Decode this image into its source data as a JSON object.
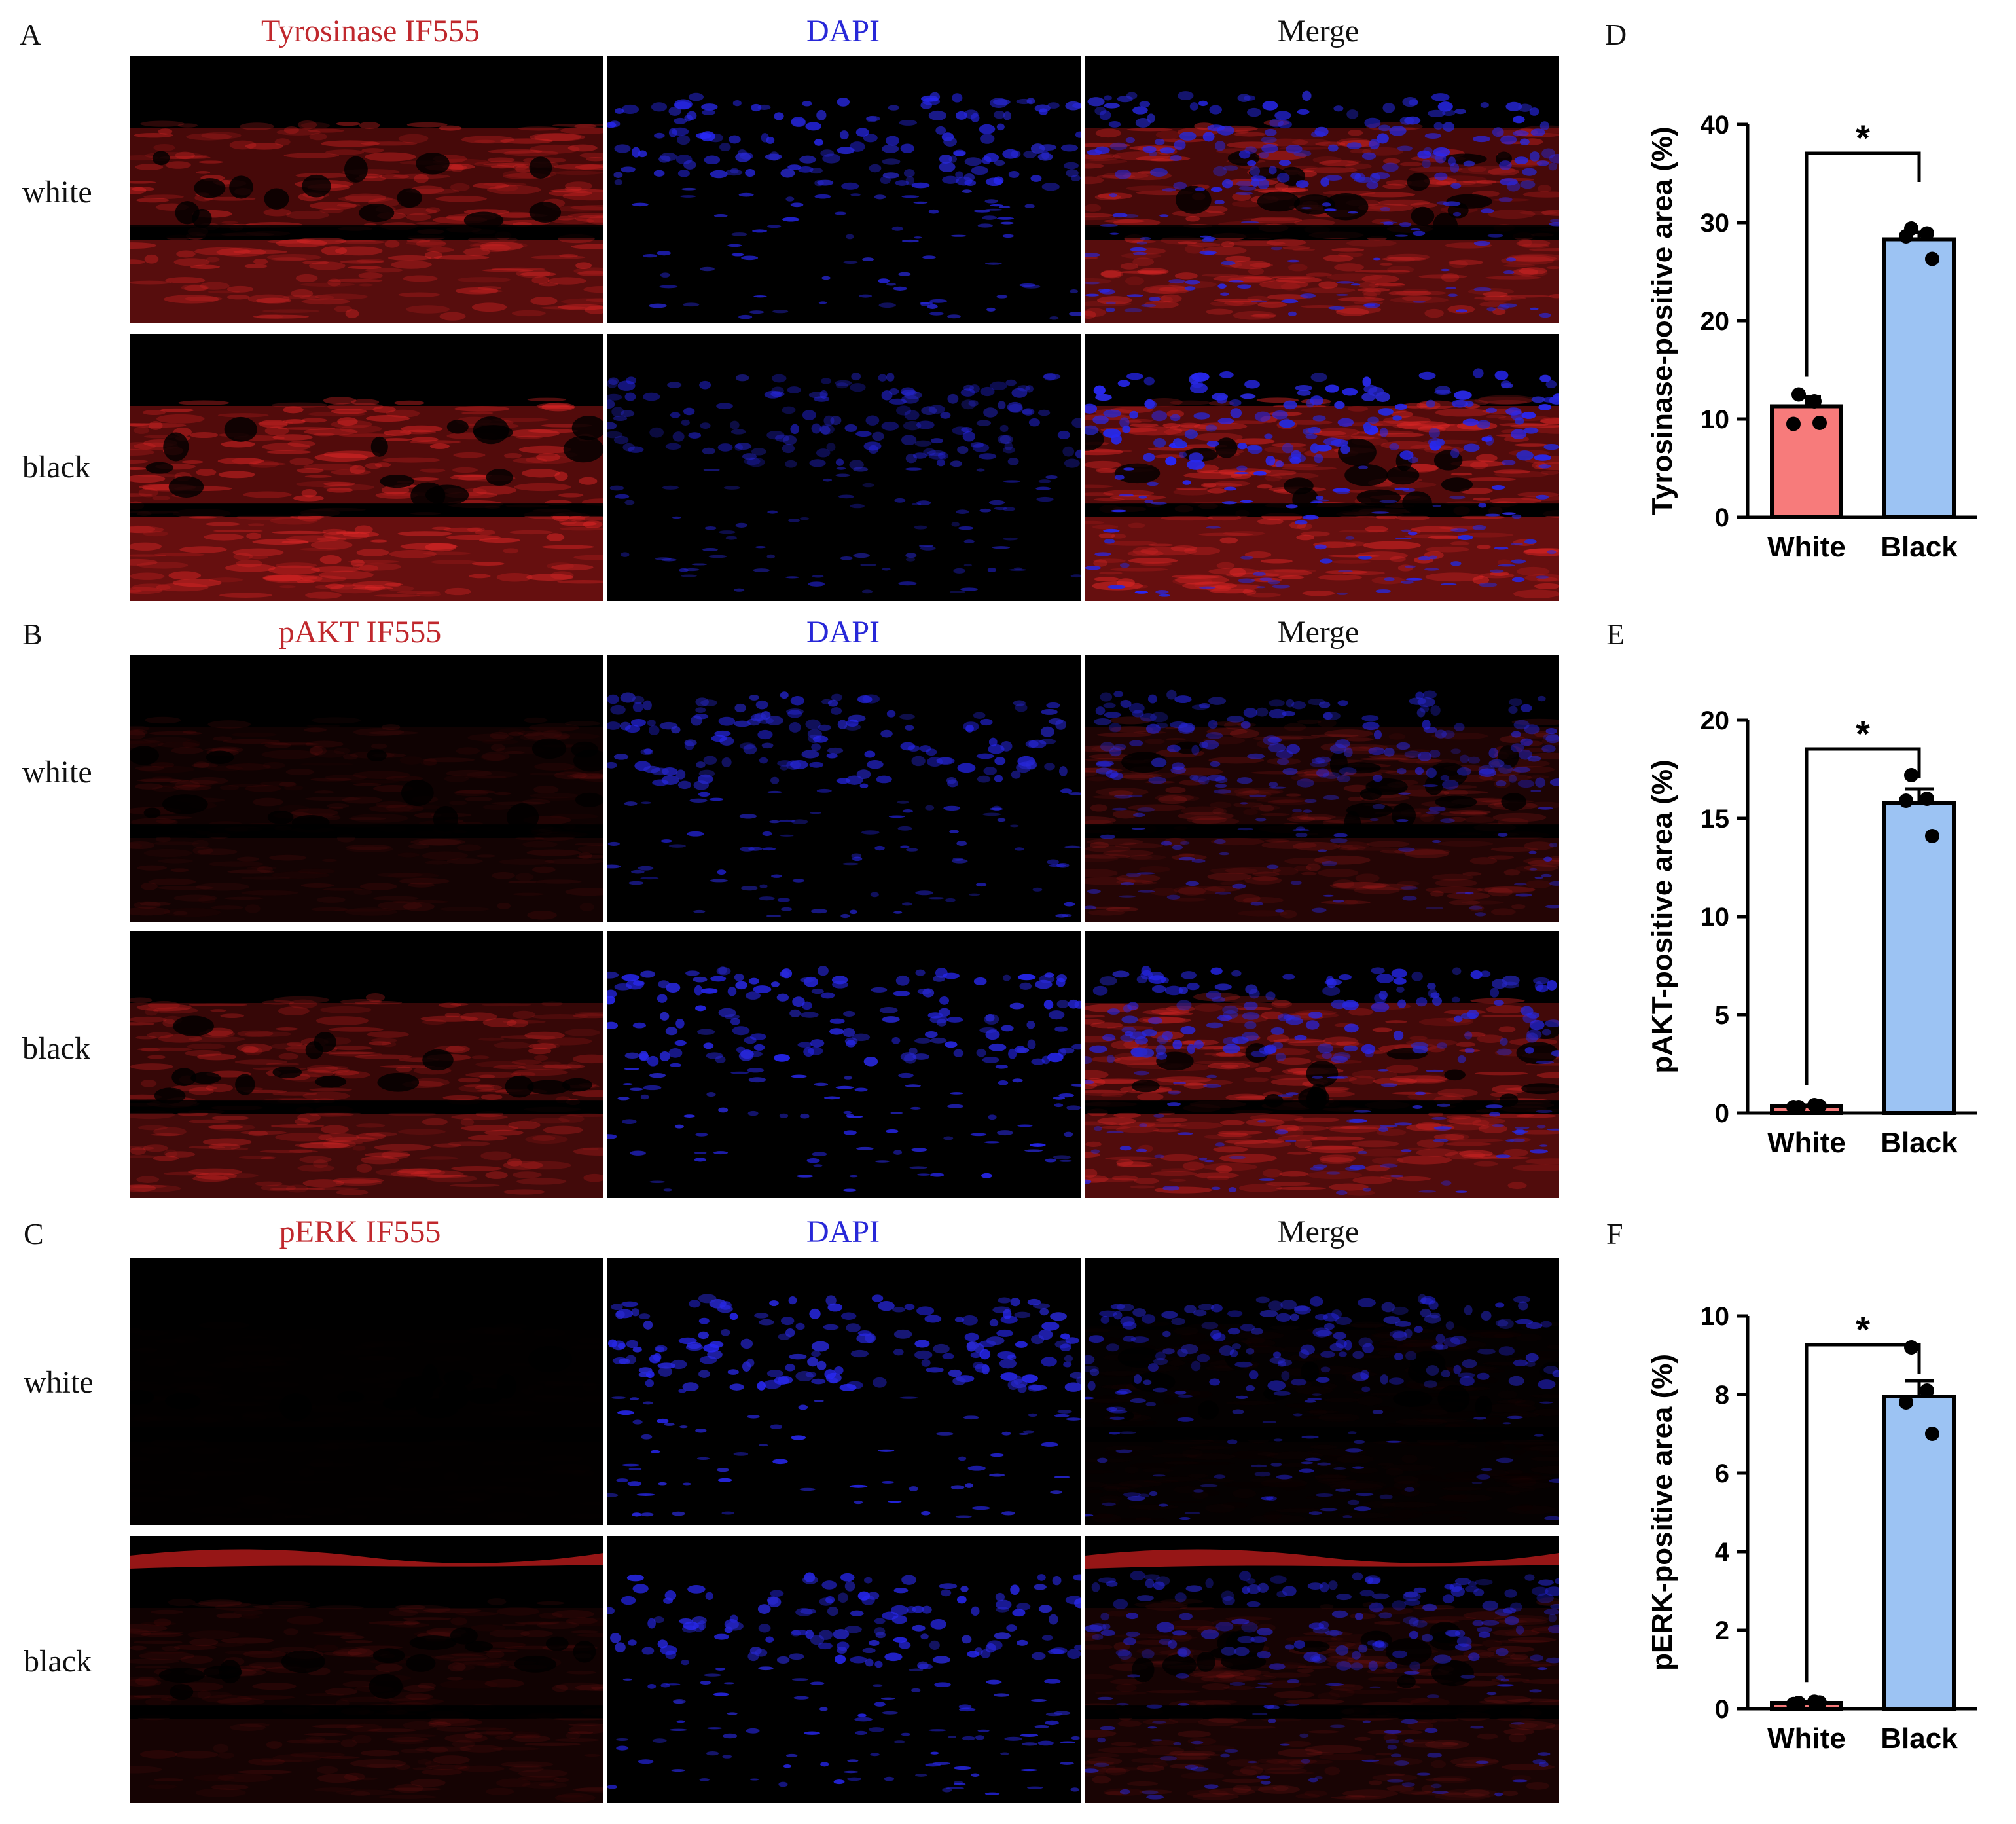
{
  "figure": {
    "panels": [
      {
        "letter": "A",
        "stain": "Tyrosinase IF555",
        "dapi": "DAPI",
        "merge": "Merge",
        "rows": [
          "white",
          "black"
        ]
      },
      {
        "letter": "B",
        "stain": "pAKT IF555",
        "dapi": "DAPI",
        "merge": "Merge",
        "rows": [
          "white",
          "black"
        ]
      },
      {
        "letter": "C",
        "stain": "pERK IF555",
        "dapi": "DAPI",
        "merge": "Merge",
        "rows": [
          "white",
          "black"
        ]
      }
    ],
    "colors": {
      "stain_red": "#c0282d",
      "dapi_blue": "#2828d8",
      "merge_black": "#111111",
      "white_bar": "#f77b7b",
      "black_bar": "#9cc3f3"
    }
  },
  "chart_data": [
    {
      "letter": "D",
      "type": "bar",
      "categories": [
        "White",
        "Black"
      ],
      "values": [
        11.3,
        28.3
      ],
      "sem": [
        1.0,
        0.7
      ],
      "points": [
        [
          12.5,
          11.8,
          9.5,
          9.6
        ],
        [
          29.4,
          28.9,
          28.6,
          26.3
        ]
      ],
      "ylabel": "Tyrosinase-positive area (%)",
      "xlabel": "",
      "ylim": [
        0,
        40
      ],
      "yticks": [
        "0",
        "10",
        "20",
        "30",
        "40"
      ],
      "significance": "*"
    },
    {
      "letter": "E",
      "type": "bar",
      "categories": [
        "White",
        "Black"
      ],
      "values": [
        0.35,
        15.8
      ],
      "sem": [
        0.05,
        0.7
      ],
      "points": [
        [
          0.3,
          0.4,
          0.3,
          0.35
        ],
        [
          17.2,
          16.0,
          15.9,
          14.1
        ]
      ],
      "ylabel": "pAKT-positive area (%)",
      "xlabel": "",
      "ylim": [
        0,
        20
      ],
      "yticks": [
        "0",
        "5",
        "10",
        "15",
        "20"
      ],
      "significance": "*"
    },
    {
      "letter": "F",
      "type": "bar",
      "categories": [
        "White",
        "Black"
      ],
      "values": [
        0.15,
        7.95
      ],
      "sem": [
        0.03,
        0.4
      ],
      "points": [
        [
          0.15,
          0.18,
          0.12,
          0.16
        ],
        [
          9.2,
          8.1,
          7.8,
          7.0
        ]
      ],
      "ylabel": "pERK-positive area  (%)",
      "xlabel": "",
      "ylim": [
        0,
        10
      ],
      "yticks": [
        "0",
        "2",
        "4",
        "6",
        "8",
        "10"
      ],
      "significance": "*"
    }
  ]
}
